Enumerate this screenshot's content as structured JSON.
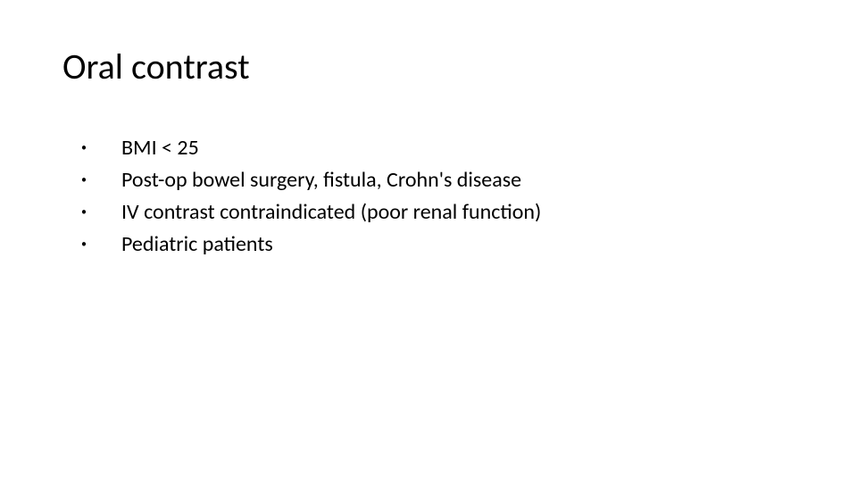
{
  "slide": {
    "title": "Oral contrast",
    "title_fontsize": 40,
    "title_color": "#000000",
    "background_color": "#ffffff",
    "bullet_char": "•",
    "bullet_fontsize": 24,
    "bullet_color": "#000000",
    "bullets": [
      "BMI < 25",
      "Post-op bowel surgery, fistula, Crohn's disease",
      "IV contrast contraindicated (poor renal function)",
      "Pediatric patients"
    ]
  }
}
